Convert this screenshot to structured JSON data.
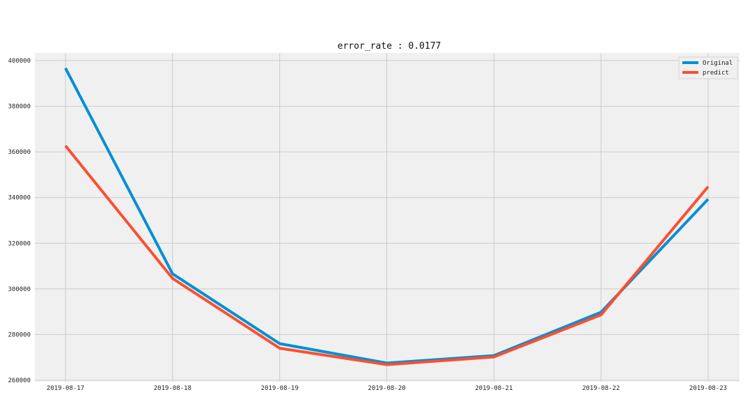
{
  "chart_data": {
    "type": "line",
    "title": "error_rate : 0.0177",
    "xlabel": "",
    "ylabel": "",
    "x": [
      "2019-08-17",
      "2019-08-18",
      "2019-08-19",
      "2019-08-20",
      "2019-08-21",
      "2019-08-22",
      "2019-08-23"
    ],
    "series": [
      {
        "name": "Original",
        "color": "#008fd5",
        "values": [
          396700,
          306600,
          276000,
          267500,
          270800,
          289800,
          339300
        ]
      },
      {
        "name": "predict",
        "color": "#fc4f30",
        "values": [
          362700,
          304600,
          274000,
          266800,
          270200,
          288600,
          344800
        ]
      }
    ],
    "ylim": [
      260000,
      400000
    ],
    "yticks": [
      "260000",
      "280000",
      "300000",
      "320000",
      "340000",
      "360000",
      "380000",
      "400000"
    ],
    "grid": true,
    "legend_position": "top-right",
    "colors": {
      "plot_background": "#f0f0f0",
      "grid": "#cbcbcb"
    }
  }
}
